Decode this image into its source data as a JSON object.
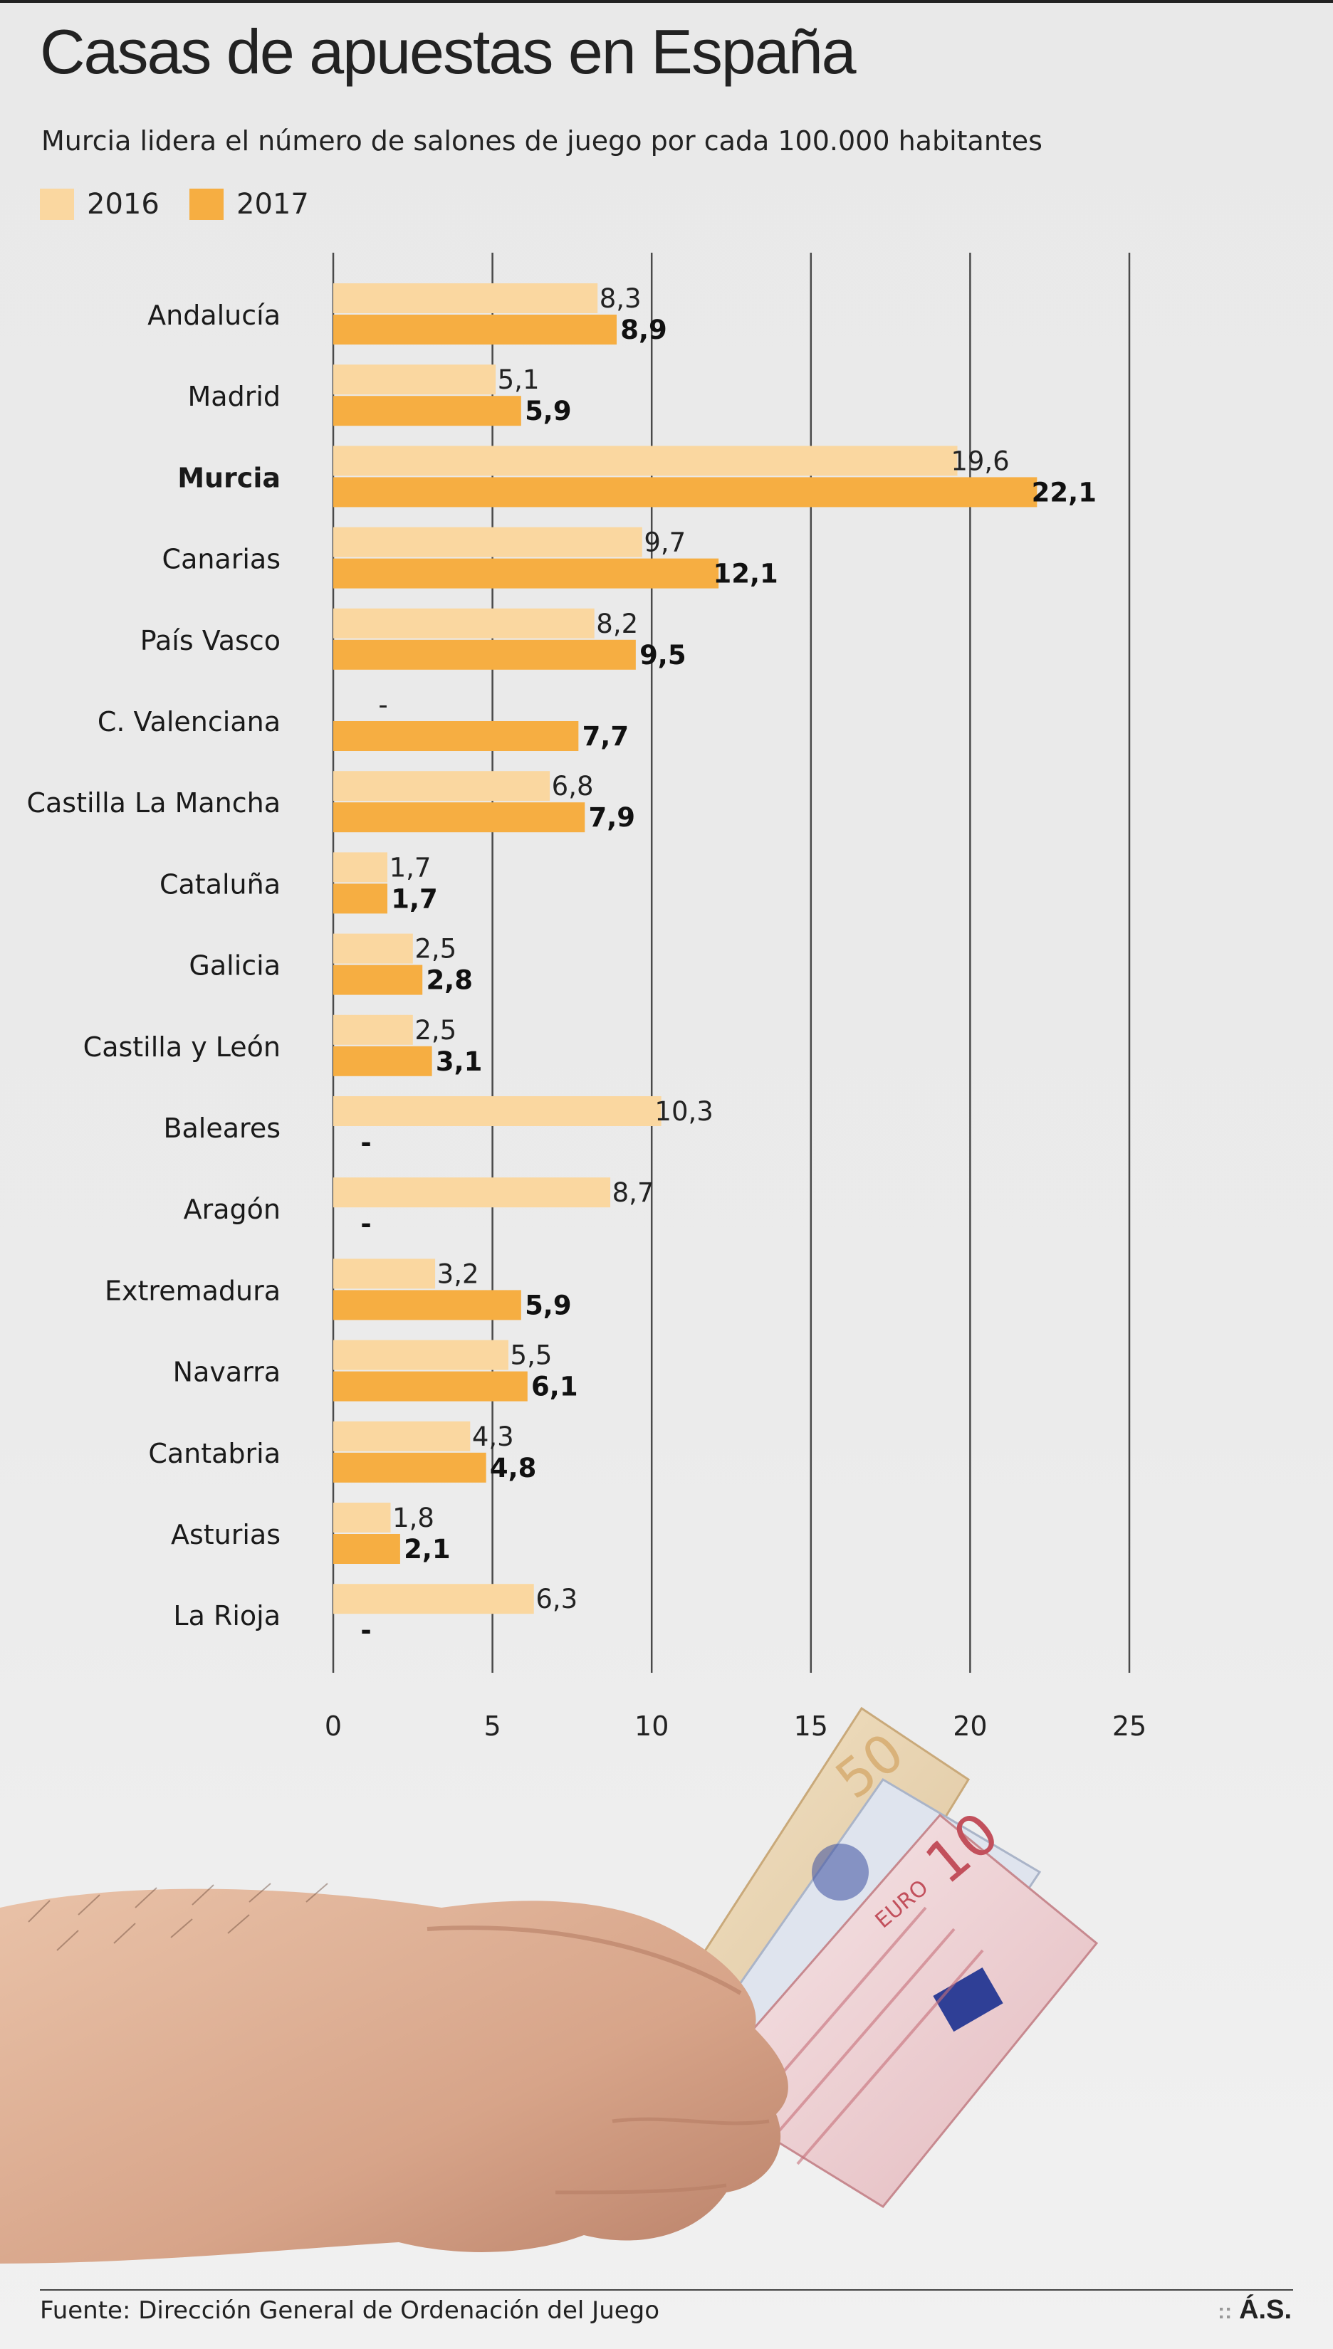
{
  "title": "Casas de apuestas en España",
  "subtitle": "Murcia lidera el número de salones de juego por cada 100.000 habitantes",
  "legend": [
    {
      "label": "2016",
      "color": "#fad7a0"
    },
    {
      "label": "2017",
      "color": "#f6ae42"
    }
  ],
  "source": "Fuente: Dirección General de Ordenación del Juego",
  "brand": "Á.S.",
  "chart_data": {
    "type": "bar",
    "orientation": "horizontal",
    "categories": [
      "Andalucía",
      "Madrid",
      "Murcia",
      "Canarias",
      "País Vasco",
      "C. Valenciana",
      "Castilla La Mancha",
      "Cataluña",
      "Galicia",
      "Castilla y León",
      "Baleares",
      "Aragón",
      "Extremadura",
      "Navarra",
      "Cantabria",
      "Asturias",
      "La Rioja"
    ],
    "highlight_category": "Murcia",
    "series": [
      {
        "name": "2016",
        "color": "#fad7a0",
        "values": [
          8.3,
          5.1,
          19.6,
          9.7,
          8.2,
          null,
          6.8,
          1.7,
          2.5,
          2.5,
          10.3,
          8.7,
          3.2,
          5.5,
          4.3,
          1.8,
          6.3
        ],
        "labels": [
          "8,3",
          "5,1",
          "19,6",
          "9,7",
          "8,2",
          "-",
          "6,8",
          "1,7",
          "2,5",
          "2,5",
          "10,3",
          "8,7",
          "3,2",
          "5,5",
          "4,3",
          "1,8",
          "6,3"
        ]
      },
      {
        "name": "2017",
        "color": "#f6ae42",
        "values": [
          8.9,
          5.9,
          22.1,
          12.1,
          9.5,
          7.7,
          7.9,
          1.7,
          2.8,
          3.1,
          null,
          null,
          5.9,
          6.1,
          4.8,
          2.1,
          null
        ],
        "labels": [
          "8,9",
          "5,9",
          "22,1",
          "12,1",
          "9,5",
          "7,7",
          "7,9",
          "1,7",
          "2,8",
          "3,1",
          "-",
          "-",
          "5,9",
          "6,1",
          "4,8",
          "2,1",
          "-"
        ]
      }
    ],
    "xlim": [
      0,
      25
    ],
    "xticks": [
      "0",
      "5",
      "10",
      "15",
      "20",
      "25"
    ],
    "grid": true,
    "legend_position": "top-left"
  }
}
